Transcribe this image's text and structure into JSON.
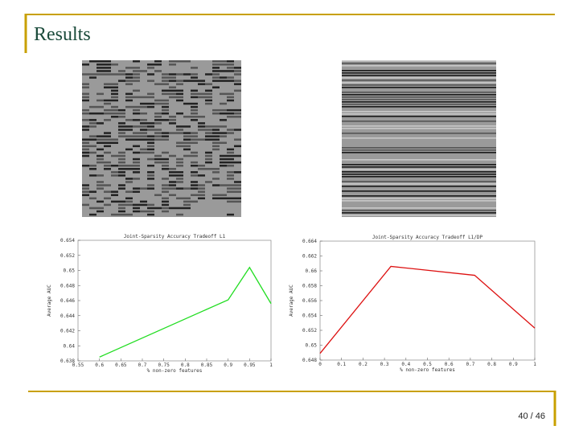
{
  "slide": {
    "title": "Results",
    "page": "40 / 46"
  },
  "chart_data": [
    {
      "type": "line",
      "title": "Joint-Sparsity Accuracy Tradeoff L1",
      "xlabel": "% non-zero features",
      "ylabel": "Average AUC",
      "x": [
        0.6,
        0.9,
        0.95,
        1
      ],
      "series": [
        {
          "color": "#22dd22",
          "values": [
            0.6385,
            0.6461,
            0.6504,
            0.6456
          ]
        }
      ],
      "xlim": [
        0.55,
        1
      ],
      "xticks": [
        0.55,
        0.6,
        0.65,
        0.7,
        0.75,
        0.8,
        0.85,
        0.9,
        0.95,
        1
      ],
      "ylim": [
        0.638,
        0.654
      ],
      "yticks": [
        0.638,
        0.64,
        0.642,
        0.644,
        0.646,
        0.648,
        0.65,
        0.652,
        0.654
      ]
    },
    {
      "type": "line",
      "title": "Joint-Sparsity Accuracy Tradeoff L1/DP",
      "xlabel": "% non-zero features",
      "ylabel": "Average AUC",
      "x": [
        0,
        0.33,
        0.72,
        1
      ],
      "series": [
        {
          "color": "#dd1111",
          "values": [
            0.6489,
            0.6606,
            0.6594,
            0.6523
          ]
        }
      ],
      "xlim": [
        0,
        1
      ],
      "xticks": [
        0,
        0.1,
        0.2,
        0.3,
        0.4,
        0.5,
        0.6,
        0.7,
        0.8,
        0.9,
        1
      ],
      "ylim": [
        0.648,
        0.664
      ],
      "yticks": [
        0.648,
        0.65,
        0.652,
        0.654,
        0.656,
        0.658,
        0.66,
        0.662,
        0.664
      ]
    }
  ]
}
